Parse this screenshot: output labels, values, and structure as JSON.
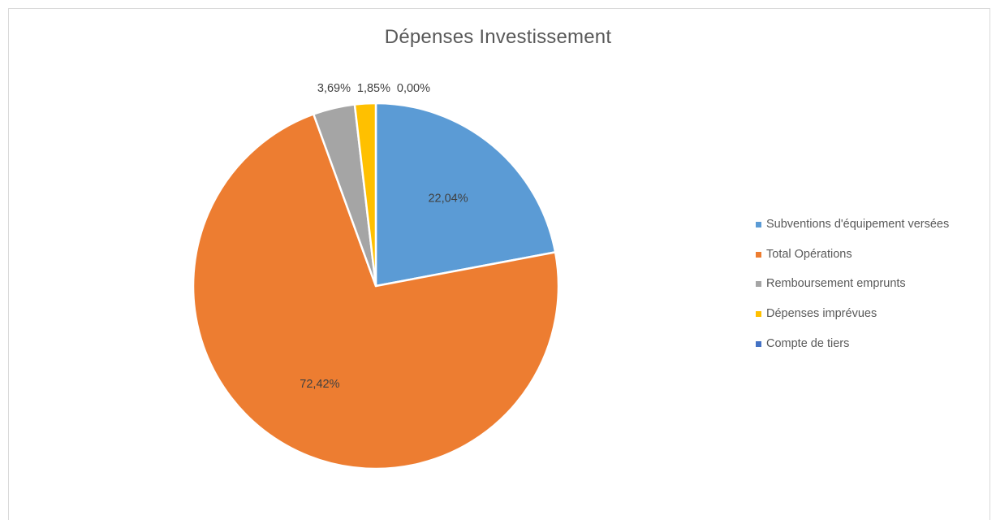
{
  "chart_data": {
    "type": "pie",
    "title": "Dépenses Investissement",
    "categories": [
      "Subventions d'équipement versées",
      "Total Opérations",
      "Remboursement emprunts",
      "Dépenses imprévues",
      "Compte de tiers"
    ],
    "values": [
      22.04,
      72.42,
      3.69,
      1.85,
      0.0
    ],
    "labels": [
      "22,04%",
      "72,42%",
      "3,69%",
      "1,85%",
      "0,00%"
    ],
    "colors": [
      "#5B9BD5",
      "#ED7D31",
      "#A5A5A5",
      "#FFC000",
      "#4472C4"
    ],
    "legend_position": "right"
  }
}
